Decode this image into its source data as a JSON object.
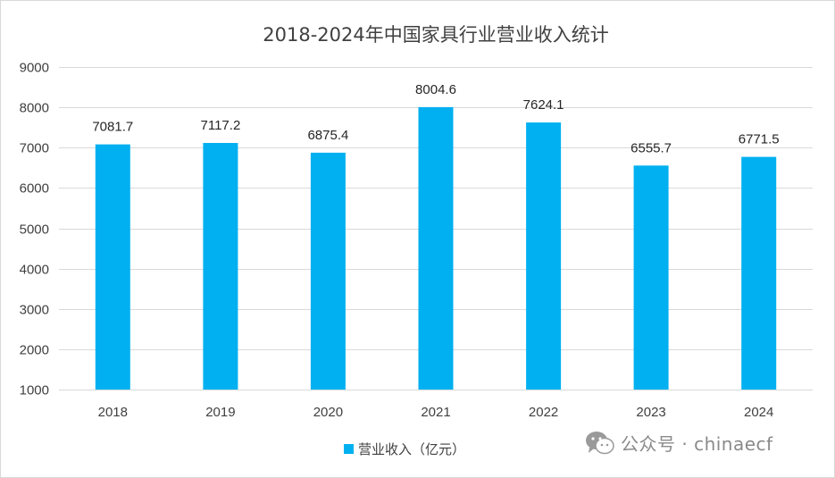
{
  "chart_data": {
    "type": "bar",
    "title": "2018-2024年中国家具行业营业收入统计",
    "categories": [
      "2018",
      "2019",
      "2020",
      "2021",
      "2022",
      "2023",
      "2024"
    ],
    "series": [
      {
        "name": "营业收入（亿元）",
        "values": [
          7081.7,
          7117.2,
          6875.4,
          8004.6,
          7624.1,
          6555.7,
          6771.5
        ],
        "data_labels": [
          "7081.7",
          "7117.2",
          "6875.4",
          "8004.6",
          "7624.1",
          "6555.7",
          "6771.5"
        ],
        "color": "#00b0f0"
      }
    ],
    "xlabel": "",
    "ylabel": "",
    "ylim": [
      1000,
      9000
    ],
    "yticks": [
      1000,
      2000,
      3000,
      4000,
      5000,
      6000,
      7000,
      8000,
      9000
    ],
    "ytick_labels": [
      "1000",
      "2000",
      "3000",
      "4000",
      "5000",
      "6000",
      "7000",
      "8000",
      "9000"
    ],
    "grid": true,
    "legend_position": "bottom"
  },
  "colors": {
    "bar": "#00b0f0",
    "grid": "#d9d9d9",
    "text": "#404040",
    "watermark": "#8a8a8a"
  },
  "watermark": {
    "icon": "wechat-icon",
    "text": "公众号 · chinaecf"
  }
}
